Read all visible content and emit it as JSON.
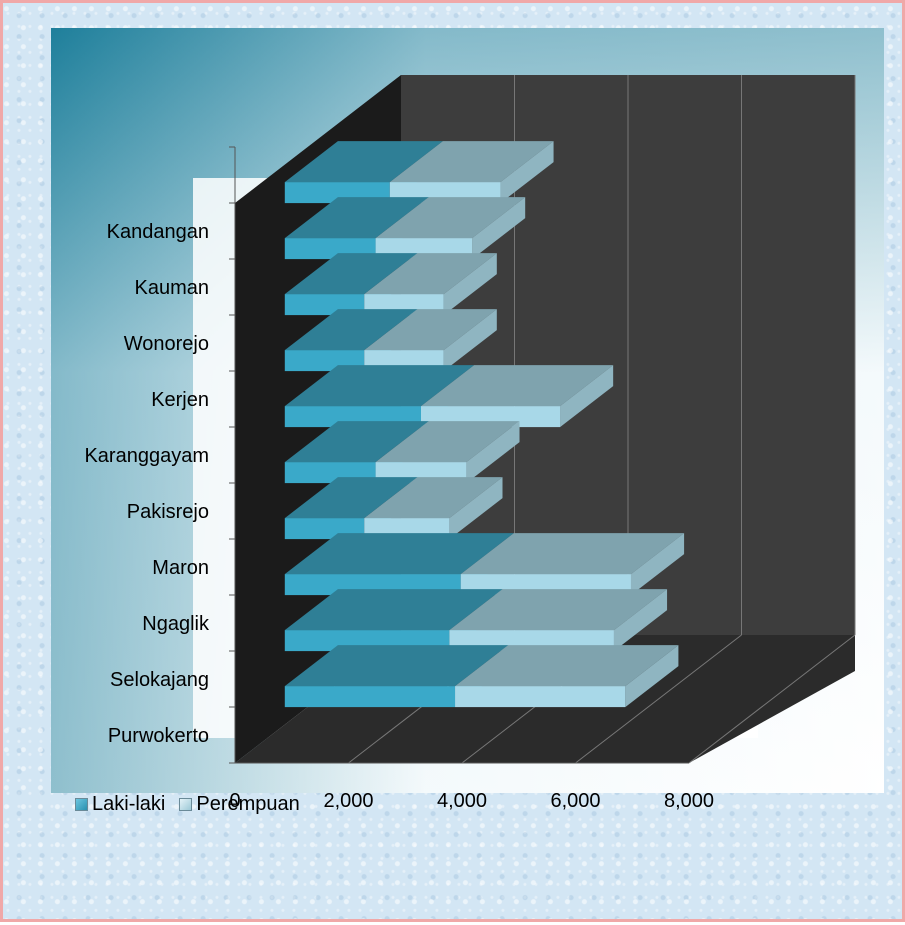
{
  "chart_data": {
    "type": "bar",
    "orientation": "horizontal",
    "stacked": true,
    "three_d": true,
    "categories": [
      "Purwokerto",
      "Selokajang",
      "Ngaglik",
      "Maron",
      "Pakisrejo",
      "Karanggayam",
      "Kerjen",
      "Wonorejo",
      "Kauman",
      "Kandangan",
      ""
    ],
    "series": [
      {
        "name": "Laki-laki",
        "color": "#3aa9c9",
        "values": [
          3000,
          2900,
          3100,
          1400,
          1600,
          2400,
          1400,
          1400,
          1600,
          1850,
          0
        ]
      },
      {
        "name": "Perempuan",
        "color": "#a8d8e8",
        "values": [
          3000,
          2900,
          3000,
          1500,
          1600,
          2450,
          1400,
          1400,
          1700,
          1950,
          0
        ]
      }
    ],
    "xlim": [
      0,
      8000
    ],
    "x_ticks": [
      "0",
      "2,000",
      "4,000",
      "6,000",
      "8,000"
    ],
    "grid": true,
    "legend_position": "bottom-left"
  }
}
